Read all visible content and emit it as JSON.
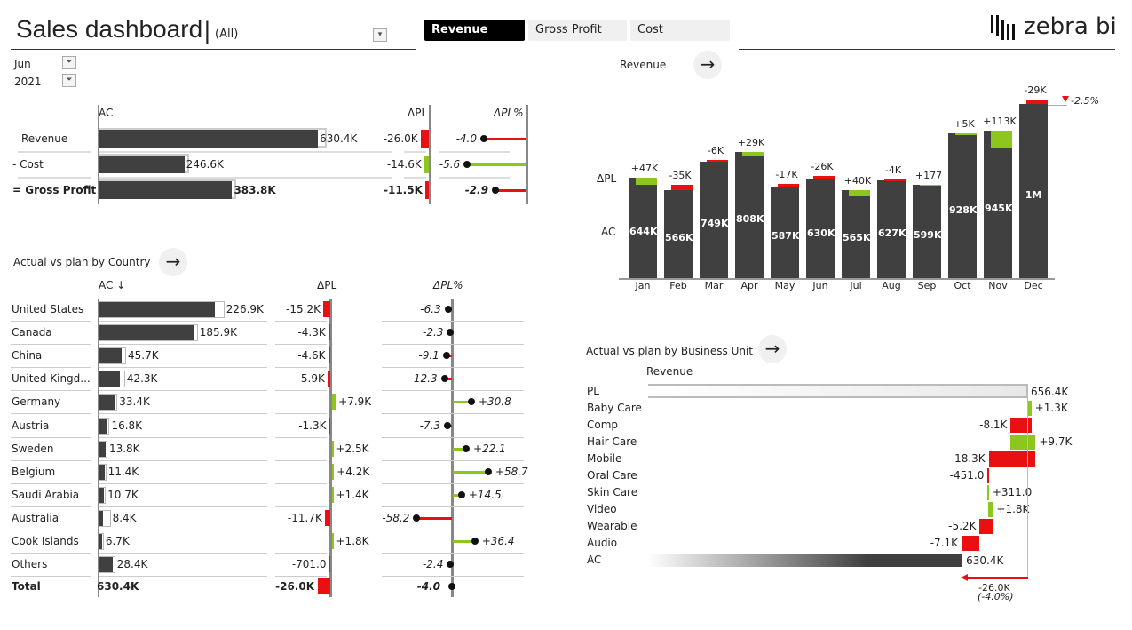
{
  "header": {
    "title": "Sales dashboard",
    "separator": "|",
    "filter_value": "(All)",
    "tabs": [
      "Revenue",
      "Gross Profit",
      "Cost"
    ],
    "active_tab": "Revenue",
    "logo": "zebra bi"
  },
  "filters": {
    "month": "Jun",
    "year": "2021"
  },
  "colors": {
    "ac": "#404040",
    "neg": "#e81010",
    "pos": "#8cc61e",
    "pl": "#e6e6e6"
  },
  "summary": {
    "headers": {
      "ac": "AC",
      "dpl": "ΔPL",
      "dplp": "ΔPL%"
    },
    "rows": [
      {
        "label": "Revenue",
        "ac": 630.4,
        "ac_label": "630.4K",
        "pl": 656.4,
        "dpl": -26.0,
        "dpl_label": "-26.0K",
        "dplp": -4.0,
        "dplp_label": "-4.0",
        "good": false,
        "bold": false
      },
      {
        "label": "- Cost",
        "ac": 246.6,
        "ac_label": "246.6K",
        "pl": 261.2,
        "dpl": -14.6,
        "dpl_label": "-14.6K",
        "dplp": -5.6,
        "dplp_label": "-5.6",
        "good": true,
        "bold": false
      },
      {
        "label": "= Gross Profit",
        "ac": 383.8,
        "ac_label": "383.8K",
        "pl": 395.3,
        "dpl": -11.5,
        "dpl_label": "-11.5K",
        "dplp": -2.9,
        "dplp_label": "-2.9",
        "good": false,
        "bold": true
      }
    ]
  },
  "country": {
    "title": "Actual vs plan by Country",
    "headers": {
      "ac": "AC ↓",
      "dpl": "ΔPL",
      "dplp": "ΔPL%"
    },
    "rows": [
      {
        "label": "United States",
        "ac": 226.9,
        "ac_label": "226.9K",
        "dpl": -15.2,
        "dpl_label": "-15.2K",
        "dplp": -6.3,
        "dplp_label": "-6.3"
      },
      {
        "label": "Canada",
        "ac": 185.9,
        "ac_label": "185.9K",
        "dpl": -4.3,
        "dpl_label": "-4.3K",
        "dplp": -2.3,
        "dplp_label": "-2.3"
      },
      {
        "label": "China",
        "ac": 45.7,
        "ac_label": "45.7K",
        "dpl": -4.6,
        "dpl_label": "-4.6K",
        "dplp": -9.1,
        "dplp_label": "-9.1"
      },
      {
        "label": "United Kingd...",
        "ac": 42.3,
        "ac_label": "42.3K",
        "dpl": -5.9,
        "dpl_label": "-5.9K",
        "dplp": -12.3,
        "dplp_label": "-12.3"
      },
      {
        "label": "Germany",
        "ac": 33.4,
        "ac_label": "33.4K",
        "dpl": 7.9,
        "dpl_label": "+7.9K",
        "dplp": 30.8,
        "dplp_label": "+30.8"
      },
      {
        "label": "Austria",
        "ac": 16.8,
        "ac_label": "16.8K",
        "dpl": -1.3,
        "dpl_label": "-1.3K",
        "dplp": -7.3,
        "dplp_label": "-7.3"
      },
      {
        "label": "Sweden",
        "ac": 13.8,
        "ac_label": "13.8K",
        "dpl": 2.5,
        "dpl_label": "+2.5K",
        "dplp": 22.1,
        "dplp_label": "+22.1"
      },
      {
        "label": "Belgium",
        "ac": 11.4,
        "ac_label": "11.4K",
        "dpl": 4.2,
        "dpl_label": "+4.2K",
        "dplp": 58.7,
        "dplp_label": "+58.7"
      },
      {
        "label": "Saudi Arabia",
        "ac": 10.7,
        "ac_label": "10.7K",
        "dpl": 1.4,
        "dpl_label": "+1.4K",
        "dplp": 14.5,
        "dplp_label": "+14.5"
      },
      {
        "label": "Australia",
        "ac": 8.4,
        "ac_label": "8.4K",
        "dpl": -11.7,
        "dpl_label": "-11.7K",
        "dplp": -58.2,
        "dplp_label": "-58.2"
      },
      {
        "label": "Cook Islands",
        "ac": 6.7,
        "ac_label": "6.7K",
        "dpl": 1.8,
        "dpl_label": "+1.8K",
        "dplp": 36.4,
        "dplp_label": "+36.4"
      },
      {
        "label": "Others",
        "ac": 28.4,
        "ac_label": "28.4K",
        "dpl": -0.701,
        "dpl_label": "-701.0",
        "dplp": -2.4,
        "dplp_label": "-2.4"
      }
    ],
    "total": {
      "label": "Total",
      "ac_label": "630.4K",
      "dpl": -26.0,
      "dpl_label": "-26.0K",
      "dplp_label": "-4.0"
    }
  },
  "monthly": {
    "title": "Revenue",
    "row_labels": {
      "dpl": "ΔPL",
      "ac": "AC"
    },
    "months": [
      "Jan",
      "Feb",
      "Mar",
      "Apr",
      "May",
      "Jun",
      "Jul",
      "Aug",
      "Sep",
      "Oct",
      "Nov",
      "Dec"
    ],
    "ac": [
      644,
      566,
      749,
      808,
      587,
      630,
      565,
      627,
      599,
      928,
      945,
      1117
    ],
    "ac_labels": [
      "644K",
      "566K",
      "749K",
      "808K",
      "587K",
      "630K",
      "565K",
      "627K",
      "599K",
      "928K",
      "945K",
      "1M"
    ],
    "dpl": [
      47,
      -35,
      -6,
      29,
      -17,
      -26,
      40,
      -4,
      0.177,
      5,
      113,
      -29
    ],
    "dpl_labels": [
      "+47K",
      "-35K",
      "-6K",
      "+29K",
      "-17K",
      "-26K",
      "+40K",
      "-4K",
      "+177",
      "+5K",
      "+113K",
      "-29K"
    ],
    "total_delta_pct": "-2.5%"
  },
  "business_unit": {
    "title": "Actual vs plan by Business Unit",
    "measure": "Revenue",
    "pl": {
      "label": "PL",
      "value": 656.4,
      "value_label": "656.4K"
    },
    "units": [
      {
        "label": "Baby Care",
        "delta": 1.3,
        "delta_label": "+1.3K"
      },
      {
        "label": "Comp",
        "delta": -8.1,
        "delta_label": "-8.1K"
      },
      {
        "label": "Hair Care",
        "delta": 9.7,
        "delta_label": "+9.7K"
      },
      {
        "label": "Mobile",
        "delta": -18.3,
        "delta_label": "-18.3K"
      },
      {
        "label": "Oral Care",
        "delta": -0.451,
        "delta_label": "-451.0"
      },
      {
        "label": "Skin Care",
        "delta": 0.311,
        "delta_label": "+311.0"
      },
      {
        "label": "Video",
        "delta": 1.8,
        "delta_label": "+1.8K"
      },
      {
        "label": "Wearable",
        "delta": -5.2,
        "delta_label": "-5.2K"
      },
      {
        "label": "Audio",
        "delta": -7.1,
        "delta_label": "-7.1K"
      }
    ],
    "ac": {
      "label": "AC",
      "value": 630.4,
      "value_label": "630.4K"
    },
    "variance_label": "-26.0K",
    "variance_pct_label": "(-4.0%)"
  }
}
